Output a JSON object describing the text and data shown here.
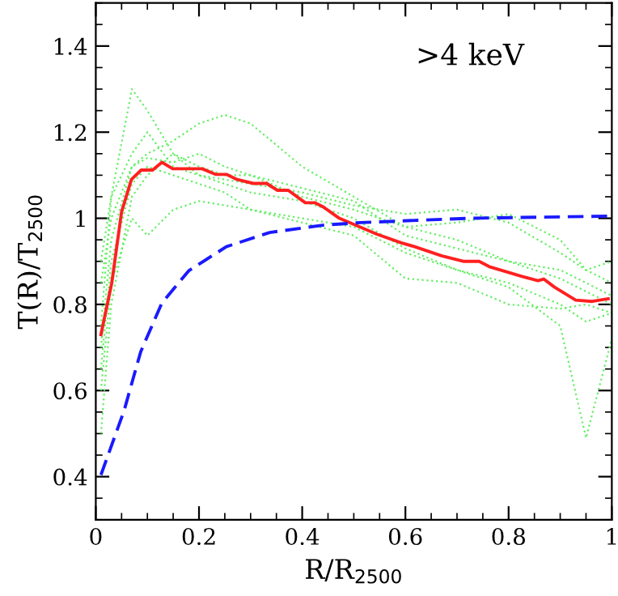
{
  "chart_data": {
    "type": "line",
    "xlabel": "R/R$_{2500}$",
    "ylabel": "T(R)/T$_{2500}$",
    "annotations": [
      ">4 keV"
    ],
    "xlim": [
      0,
      1
    ],
    "xticks": [
      0,
      0.2,
      0.4,
      0.6,
      0.8,
      1
    ],
    "ylim": [
      0.3,
      1.5
    ],
    "yticks": [
      0.4,
      0.6,
      0.8,
      1,
      1.2,
      1.4
    ],
    "grid": false,
    "series": [
      {
        "color": "#66ee66",
        "line_style": "dotted",
        "x": [
          0.01,
          0.03,
          0.07,
          0.1,
          0.15,
          0.2,
          0.25,
          0.3,
          0.4,
          0.5,
          0.6,
          0.7,
          0.8,
          0.9,
          0.95,
          1.0
        ],
        "values": [
          0.75,
          1.05,
          1.3,
          1.25,
          1.15,
          1.12,
          1.1,
          1.1,
          1.05,
          1.02,
          0.98,
          0.95,
          0.9,
          0.88,
          0.85,
          0.82
        ]
      },
      {
        "color": "#66ee66",
        "line_style": "dotted",
        "x": [
          0.01,
          0.03,
          0.07,
          0.1,
          0.15,
          0.2,
          0.25,
          0.3,
          0.4,
          0.5,
          0.6,
          0.7,
          0.8,
          0.9,
          0.95,
          1.0
        ],
        "values": [
          0.85,
          1.0,
          1.12,
          1.15,
          1.18,
          1.22,
          1.24,
          1.22,
          1.12,
          1.05,
          0.98,
          0.99,
          1.01,
          0.95,
          0.88,
          0.85
        ]
      },
      {
        "color": "#66ee66",
        "line_style": "dotted",
        "x": [
          0.01,
          0.03,
          0.07,
          0.1,
          0.15,
          0.2,
          0.25,
          0.3,
          0.4,
          0.5,
          0.6,
          0.7,
          0.8,
          0.9,
          0.95,
          1.0
        ],
        "values": [
          0.5,
          0.8,
          1.05,
          1.1,
          1.15,
          1.1,
          1.08,
          1.06,
          1.04,
          1.0,
          0.93,
          0.88,
          0.85,
          0.8,
          0.76,
          0.78
        ]
      },
      {
        "color": "#66ee66",
        "line_style": "dotted",
        "x": [
          0.01,
          0.03,
          0.07,
          0.1,
          0.15,
          0.2,
          0.25,
          0.3,
          0.4,
          0.5,
          0.6,
          0.7,
          0.8,
          0.9,
          0.95,
          1.0
        ],
        "values": [
          0.65,
          0.9,
          1.08,
          1.12,
          1.1,
          1.08,
          1.06,
          1.02,
          1.0,
          0.98,
          0.92,
          0.88,
          0.84,
          0.75,
          0.49,
          0.72
        ]
      },
      {
        "color": "#66ee66",
        "line_style": "dotted",
        "x": [
          0.01,
          0.03,
          0.07,
          0.1,
          0.15,
          0.2,
          0.25,
          0.3,
          0.4,
          0.5,
          0.6,
          0.7,
          0.8,
          0.9,
          0.95,
          1.0
        ],
        "values": [
          0.6,
          0.85,
          1.0,
          0.96,
          1.02,
          1.04,
          1.03,
          1.02,
          0.99,
          0.96,
          0.86,
          0.85,
          0.8,
          0.79,
          0.8,
          0.78
        ]
      },
      {
        "color": "#66ee66",
        "line_style": "dotted",
        "x": [
          0.01,
          0.03,
          0.07,
          0.1,
          0.15,
          0.2,
          0.25,
          0.3,
          0.4,
          0.5,
          0.6,
          0.7,
          0.8,
          0.9,
          0.95,
          1.0
        ],
        "values": [
          0.9,
          1.05,
          1.15,
          1.2,
          1.12,
          1.1,
          1.09,
          1.08,
          1.06,
          1.03,
          1.01,
          1.02,
          0.99,
          0.92,
          0.88,
          0.9
        ]
      },
      {
        "color": "#66ee66",
        "line_style": "dotted",
        "x": [
          0.01,
          0.03,
          0.07,
          0.1,
          0.15,
          0.2,
          0.25,
          0.3,
          0.4,
          0.5,
          0.6,
          0.7,
          0.8,
          0.9,
          0.95,
          1.0
        ],
        "values": [
          0.7,
          0.95,
          1.12,
          1.14,
          1.13,
          1.15,
          1.12,
          1.1,
          1.07,
          1.04,
          0.96,
          0.93,
          0.9,
          0.86,
          0.83,
          0.8
        ]
      },
      {
        "color": "#ff2020",
        "line_style": "solid",
        "x": [
          0.01,
          0.031,
          0.05,
          0.069,
          0.088,
          0.11,
          0.128,
          0.149,
          0.206,
          0.232,
          0.253,
          0.274,
          0.305,
          0.331,
          0.352,
          0.373,
          0.406,
          0.425,
          0.44,
          0.472,
          0.545,
          0.592,
          0.618,
          0.67,
          0.712,
          0.743,
          0.764,
          0.826,
          0.857,
          0.868,
          0.889,
          0.93,
          0.962,
          0.993
        ],
        "values": [
          0.73,
          0.85,
          1.015,
          1.09,
          1.112,
          1.112,
          1.13,
          1.115,
          1.115,
          1.102,
          1.102,
          1.09,
          1.081,
          1.081,
          1.065,
          1.065,
          1.036,
          1.036,
          1.027,
          1.0,
          0.963,
          0.943,
          0.934,
          0.913,
          0.9,
          0.9,
          0.887,
          0.865,
          0.855,
          0.859,
          0.84,
          0.81,
          0.807,
          0.813
        ]
      },
      {
        "color": "#1a1aff",
        "line_style": "dashed",
        "x": [
          0.01,
          0.055,
          0.087,
          0.128,
          0.18,
          0.253,
          0.337,
          0.44,
          0.513,
          0.722,
          0.993
        ],
        "values": [
          0.404,
          0.554,
          0.69,
          0.803,
          0.878,
          0.934,
          0.967,
          0.984,
          0.99,
          1.0,
          1.005
        ]
      }
    ]
  }
}
